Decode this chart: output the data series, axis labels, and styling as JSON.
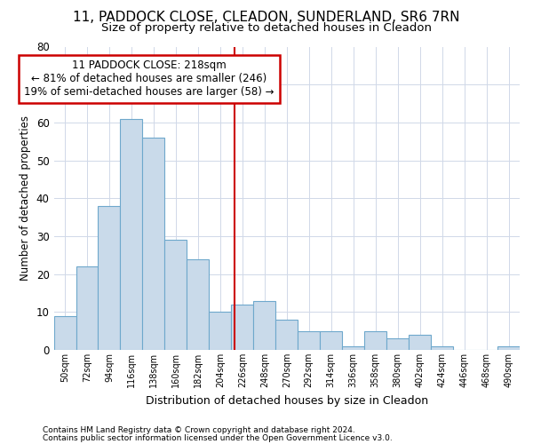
{
  "title_line1": "11, PADDOCK CLOSE, CLEADON, SUNDERLAND, SR6 7RN",
  "title_line2": "Size of property relative to detached houses in Cleadon",
  "xlabel": "Distribution of detached houses by size in Cleadon",
  "ylabel": "Number of detached properties",
  "footer_line1": "Contains HM Land Registry data © Crown copyright and database right 2024.",
  "footer_line2": "Contains public sector information licensed under the Open Government Licence v3.0.",
  "bar_labels": [
    "50sqm",
    "72sqm",
    "94sqm",
    "116sqm",
    "138sqm",
    "160sqm",
    "182sqm",
    "204sqm",
    "226sqm",
    "248sqm",
    "270sqm",
    "292sqm",
    "314sqm",
    "336sqm",
    "358sqm",
    "380sqm",
    "402sqm",
    "424sqm",
    "446sqm",
    "468sqm",
    "490sqm"
  ],
  "bar_values": [
    9,
    22,
    38,
    61,
    56,
    29,
    24,
    10,
    12,
    13,
    8,
    5,
    5,
    1,
    5,
    3,
    4,
    1,
    0,
    0,
    1
  ],
  "bar_color": "#c9daea",
  "bar_edge_color": "#6ea8cc",
  "annotation_line1": "11 PADDOCK CLOSE: 218sqm",
  "annotation_line2": "← 81% of detached houses are smaller (246)",
  "annotation_line3": "19% of semi-detached houses are larger (58) →",
  "vline_color": "#cc0000",
  "annotation_box_edge_color": "#cc0000",
  "background_color": "#ffffff",
  "plot_bg_color": "#ffffff",
  "ylim": [
    0,
    80
  ],
  "yticks": [
    0,
    10,
    20,
    30,
    40,
    50,
    60,
    70,
    80
  ],
  "grid_color": "#d0d8e8",
  "title_fontsize": 11,
  "subtitle_fontsize": 9.5,
  "annotation_fontsize": 8.5,
  "footer_fontsize": 6.5
}
